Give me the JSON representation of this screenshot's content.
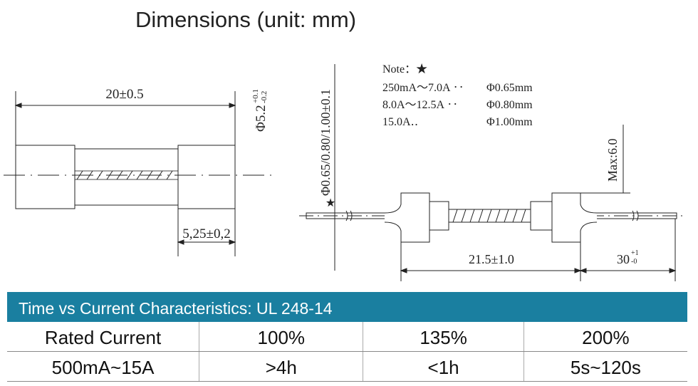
{
  "header": {
    "title": "Dimensions (unit: mm)"
  },
  "left_drawing": {
    "length": "20±0.5",
    "diameter": {
      "base": "Φ5.2",
      "upper": "+0.1",
      "lower": "-0.2"
    },
    "cap_length": "5,25±0,2"
  },
  "right_drawing": {
    "wire_diameter": "Φ0.65/0.80/1.00±0.1",
    "star": "★",
    "note": {
      "title": "Note：★",
      "rows": [
        [
          "250mA～7.0A ‥",
          "Φ0.65mm"
        ],
        [
          "8.0A～12.5A ‥",
          "Φ0.80mm"
        ],
        [
          "15.0A‥",
          "Φ1.00mm"
        ]
      ]
    },
    "max_height": "Max:6.0",
    "body_length": "21.5±1.0",
    "lead_length": {
      "base": "30",
      "upper": "+1",
      "lower": "-0"
    }
  },
  "table": {
    "title": "Time vs Current Characteristics: UL 248-14",
    "rows": [
      [
        "Rated Current",
        "100%",
        "135%",
        "200%"
      ],
      [
        "500mA~15A",
        ">4h",
        "<1h",
        "5s~120s"
      ]
    ]
  }
}
